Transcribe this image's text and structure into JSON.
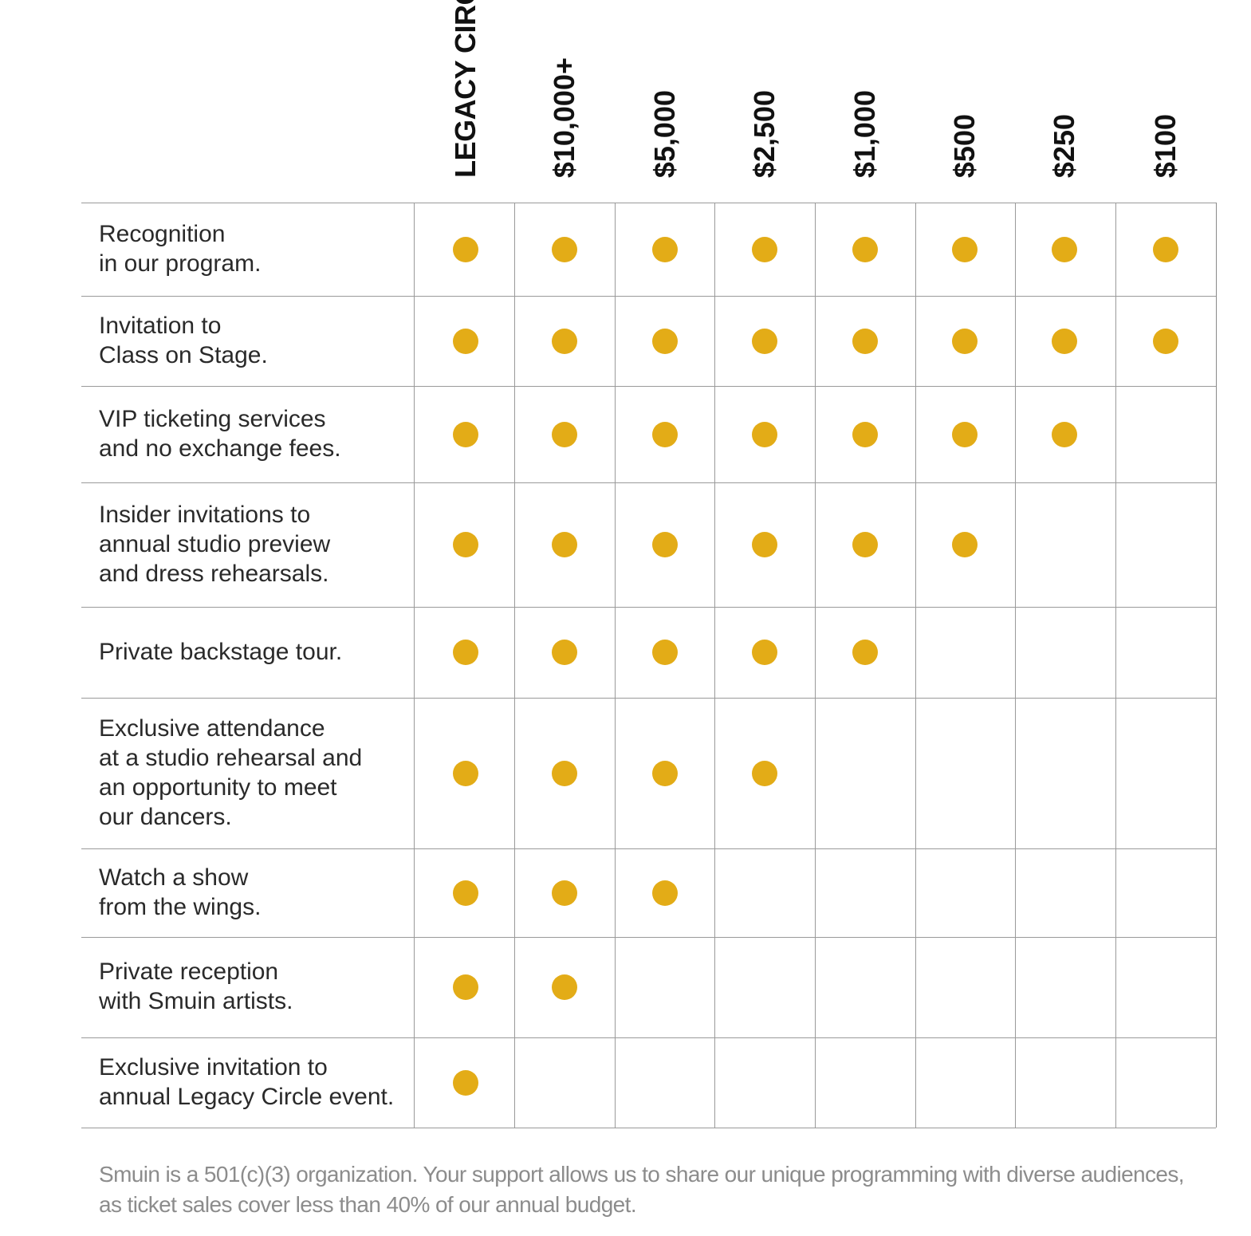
{
  "tiers": [
    "LEGACY CIRCLE",
    "$10,000+",
    "$5,000",
    "$2,500",
    "$1,000",
    "$500",
    "$250",
    "$100"
  ],
  "benefits": [
    {
      "lines": [
        "Recognition",
        "in our program."
      ],
      "tiers_included": 8
    },
    {
      "lines": [
        "Invitation to",
        "Class on Stage."
      ],
      "tiers_included": 8
    },
    {
      "lines": [
        "VIP ticketing services",
        "and no exchange fees."
      ],
      "tiers_included": 7
    },
    {
      "lines": [
        "Insider invitations to",
        "annual studio preview",
        "and dress rehearsals."
      ],
      "tiers_included": 6
    },
    {
      "lines": [
        "Private backstage tour."
      ],
      "tiers_included": 5
    },
    {
      "lines": [
        "Exclusive attendance",
        "at a studio rehearsal and",
        "an opportunity to meet",
        "our dancers."
      ],
      "tiers_included": 4
    },
    {
      "lines": [
        "Watch a show",
        "from the wings."
      ],
      "tiers_included": 3
    },
    {
      "lines": [
        "Private reception",
        "with Smuin artists."
      ],
      "tiers_included": 2
    },
    {
      "lines": [
        "Exclusive invitation to",
        "annual Legacy Circle event."
      ],
      "tiers_included": 1
    }
  ],
  "footnote": [
    "Smuin is a 501(c)(3) organization. Your support allows us to share our unique programming with diverse audiences,",
    "as ticket sales cover less than 40% of our annual budget."
  ],
  "colors": {
    "dot": "#e3ac17",
    "grid": "#9a9a9a",
    "text": "#2a2a2a",
    "footnote": "#8c8c8c"
  }
}
